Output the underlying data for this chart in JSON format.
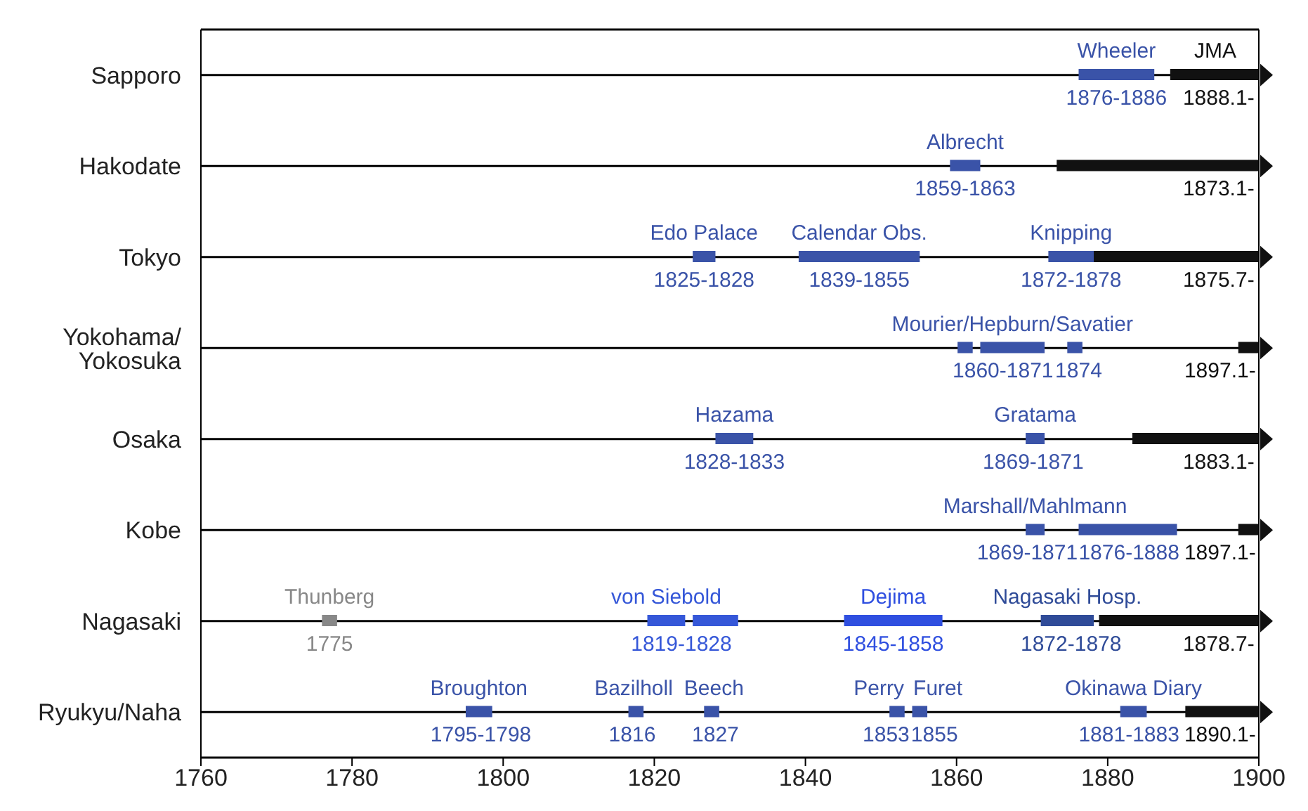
{
  "chart_data": {
    "type": "bar",
    "orientation": "horizontal",
    "categories": [
      "Sapporo",
      "Hakodate",
      "Tokyo",
      "Yokohama/\nYokosuka",
      "Osaka",
      "Kobe",
      "Nagasaki",
      "Ryukyu/Naha"
    ],
    "xlim": [
      1760,
      1900
    ],
    "xticks": [
      1760,
      1780,
      1800,
      1820,
      1840,
      1860,
      1880,
      1900
    ],
    "grid": "y",
    "series": [
      {
        "name": "JMA",
        "color": "#111111",
        "base": [
          1888.1,
          1873.1,
          1875.7,
          1897.1,
          1883.1,
          1897.1,
          1878.7,
          1890.1
        ],
        "values": [
          11.9,
          26.9,
          24.3,
          2.9,
          16.9,
          2.9,
          21.3,
          9.9
        ]
      },
      {
        "name": "Wheeler",
        "color": "#3a53a8",
        "base": [
          1876,
          null,
          null,
          null,
          null,
          null,
          null,
          null
        ],
        "values": [
          10,
          null,
          null,
          null,
          null,
          null,
          null,
          null
        ]
      },
      {
        "name": "Albrecht",
        "color": "#3a53a8",
        "base": [
          null,
          1859,
          null,
          null,
          null,
          null,
          null,
          null
        ],
        "values": [
          null,
          4,
          null,
          null,
          null,
          null,
          null,
          null
        ]
      },
      {
        "name": "Edo Palace",
        "color": "#3a53a8",
        "base": [
          null,
          null,
          1825,
          null,
          null,
          null,
          null,
          null
        ],
        "values": [
          null,
          null,
          3,
          null,
          null,
          null,
          null,
          null
        ]
      },
      {
        "name": "Calendar Obs.",
        "color": "#3a53a8",
        "base": [
          null,
          null,
          1839,
          null,
          null,
          null,
          null,
          null
        ],
        "values": [
          null,
          null,
          16,
          null,
          null,
          null,
          null,
          null
        ]
      },
      {
        "name": "Knipping",
        "color": "#3a53a8",
        "base": [
          null,
          null,
          1872,
          null,
          null,
          null,
          null,
          null
        ],
        "values": [
          null,
          null,
          6,
          null,
          null,
          null,
          null,
          null
        ]
      },
      {
        "color": "#3a53a8",
        "base": [
          null,
          null,
          null,
          1860,
          null,
          null,
          null,
          null
        ],
        "values": [
          null,
          null,
          null,
          2,
          null,
          null,
          null,
          null
        ]
      },
      {
        "name": "Mourier/Hepburn/Savatier",
        "color": "#3a53a8",
        "base": [
          null,
          null,
          null,
          1863,
          null,
          null,
          null,
          null
        ],
        "values": [
          null,
          null,
          null,
          8.5,
          null,
          null,
          null,
          null
        ]
      },
      {
        "color": "#3a53a8",
        "base": [
          null,
          null,
          null,
          1874.5,
          null,
          null,
          null,
          null
        ],
        "values": [
          null,
          null,
          null,
          2,
          null,
          null,
          null,
          null
        ]
      },
      {
        "name": "Hazama",
        "color": "#3a53a8",
        "base": [
          null,
          null,
          null,
          null,
          1828,
          null,
          null,
          null
        ],
        "values": [
          null,
          null,
          null,
          null,
          5,
          null,
          null,
          null
        ]
      },
      {
        "name": "Gratama",
        "color": "#3a53a8",
        "base": [
          null,
          null,
          null,
          null,
          1869,
          null,
          null,
          null
        ],
        "values": [
          null,
          null,
          null,
          null,
          2.5,
          null,
          null,
          null
        ]
      },
      {
        "name": "Marshall/Mahlmann",
        "color": "#3a53a8",
        "base": [
          null,
          null,
          null,
          null,
          null,
          1869,
          null,
          null
        ],
        "values": [
          null,
          null,
          null,
          null,
          null,
          2.5,
          null,
          null
        ]
      },
      {
        "color": "#3a53a8",
        "base": [
          null,
          null,
          null,
          null,
          null,
          1876,
          null,
          null
        ],
        "values": [
          null,
          null,
          null,
          null,
          null,
          13,
          null,
          null
        ]
      },
      {
        "name": "Thunberg",
        "color": "#888888",
        "base": [
          null,
          null,
          null,
          null,
          null,
          null,
          1776,
          null
        ],
        "values": [
          null,
          null,
          null,
          null,
          null,
          null,
          2,
          null
        ]
      },
      {
        "name": "von Siebold",
        "color": "#3557d8",
        "base": [
          null,
          null,
          null,
          null,
          null,
          null,
          1819,
          null
        ],
        "values": [
          null,
          null,
          null,
          null,
          null,
          null,
          5,
          null
        ]
      },
      {
        "color": "#3557d8",
        "base": [
          null,
          null,
          null,
          null,
          null,
          null,
          1825,
          null
        ],
        "values": [
          null,
          null,
          null,
          null,
          null,
          null,
          6,
          null
        ]
      },
      {
        "name": "Dejima",
        "color": "#2f4fe0",
        "base": [
          null,
          null,
          null,
          null,
          null,
          null,
          1845,
          null
        ],
        "values": [
          null,
          null,
          null,
          null,
          null,
          null,
          13,
          null
        ]
      },
      {
        "name": "Nagasaki Hosp.",
        "color": "#2f4b98",
        "base": [
          null,
          null,
          null,
          null,
          null,
          null,
          1871,
          null
        ],
        "values": [
          null,
          null,
          null,
          null,
          null,
          null,
          7,
          null
        ]
      },
      {
        "name": "Broughton",
        "color": "#3a53a8",
        "base": [
          null,
          null,
          null,
          null,
          null,
          null,
          null,
          1795
        ],
        "values": [
          null,
          null,
          null,
          null,
          null,
          null,
          null,
          3.5
        ]
      },
      {
        "name": "Bazilholl",
        "color": "#3a53a8",
        "base": [
          null,
          null,
          null,
          null,
          null,
          null,
          null,
          1816.5
        ],
        "values": [
          null,
          null,
          null,
          null,
          null,
          null,
          null,
          2
        ]
      },
      {
        "name": "Beech",
        "color": "#3a53a8",
        "base": [
          null,
          null,
          null,
          null,
          null,
          null,
          null,
          1826.5
        ],
        "values": [
          null,
          null,
          null,
          null,
          null,
          null,
          null,
          2
        ]
      },
      {
        "name": "Perry",
        "color": "#3a53a8",
        "base": [
          null,
          null,
          null,
          null,
          null,
          null,
          null,
          1851
        ],
        "values": [
          null,
          null,
          null,
          null,
          null,
          null,
          null,
          2
        ]
      },
      {
        "name": "Furet",
        "color": "#3a53a8",
        "base": [
          null,
          null,
          null,
          null,
          null,
          null,
          null,
          1854
        ],
        "values": [
          null,
          null,
          null,
          null,
          null,
          null,
          null,
          2
        ]
      },
      {
        "name": "Okinawa Diary",
        "color": "#3a53a8",
        "base": [
          null,
          null,
          null,
          null,
          null,
          null,
          null,
          1881.5
        ],
        "values": [
          null,
          null,
          null,
          null,
          null,
          null,
          null,
          3.5
        ]
      }
    ],
    "annotations": [
      {
        "text": "1876-1886",
        "x": 1881,
        "y": "Sapporo"
      },
      {
        "text": "1888.1-",
        "x": 1894.5,
        "y": "Sapporo"
      },
      {
        "text": "1859-1863",
        "x": 1861,
        "y": "Hakodate"
      },
      {
        "text": "1873.1-",
        "x": 1894.5,
        "y": "Hakodate"
      },
      {
        "text": "1825-1828",
        "x": 1826.5,
        "y": "Tokyo"
      },
      {
        "text": "1839-1855",
        "x": 1847,
        "y": "Tokyo"
      },
      {
        "text": "1872-1878",
        "x": 1875,
        "y": "Tokyo"
      },
      {
        "text": "1875.7-",
        "x": 1894.5,
        "y": "Tokyo"
      },
      {
        "text": "1860-1871",
        "x": 1866,
        "y": "Yokohama/\nYokosuka"
      },
      {
        "text": "1874",
        "x": 1876,
        "y": "Yokohama/\nYokosuka"
      },
      {
        "text": "1897.1-",
        "x": 1898,
        "y": "Yokohama/\nYokosuka"
      },
      {
        "text": "1828-1833",
        "x": 1830.5,
        "y": "Osaka"
      },
      {
        "text": "1869-1871",
        "x": 1870,
        "y": "Osaka"
      },
      {
        "text": "1883.1-",
        "x": 1894.5,
        "y": "Osaka"
      },
      {
        "text": "1869-1871",
        "x": 1870,
        "y": "Kobe"
      },
      {
        "text": "1876-1888",
        "x": 1882,
        "y": "Kobe"
      },
      {
        "text": "1897.1-",
        "x": 1898,
        "y": "Kobe"
      },
      {
        "text": "1775",
        "x": 1777,
        "y": "Nagasaki"
      },
      {
        "text": "1819-1828",
        "x": 1823.5,
        "y": "Nagasaki"
      },
      {
        "text": "1845-1858",
        "x": 1851.5,
        "y": "Nagasaki"
      },
      {
        "text": "1872-1878",
        "x": 1875,
        "y": "Nagasaki"
      },
      {
        "text": "1878.7-",
        "x": 1894.5,
        "y": "Nagasaki"
      },
      {
        "text": "1795-1798",
        "x": 1797,
        "y": "Ryukyu/Naha"
      },
      {
        "text": "1816",
        "x": 1817,
        "y": "Ryukyu/Naha"
      },
      {
        "text": "1827",
        "x": 1828,
        "y": "Ryukyu/Naha"
      },
      {
        "text": "1853",
        "x": 1851,
        "y": "Ryukyu/Naha"
      },
      {
        "text": "1855",
        "x": 1856.5,
        "y": "Ryukyu/Naha"
      },
      {
        "text": "1881-1883",
        "x": 1883,
        "y": "Ryukyu/Naha"
      },
      {
        "text": "1890.1-",
        "x": 1894.5,
        "y": "Ryukyu/Naha"
      }
    ]
  }
}
